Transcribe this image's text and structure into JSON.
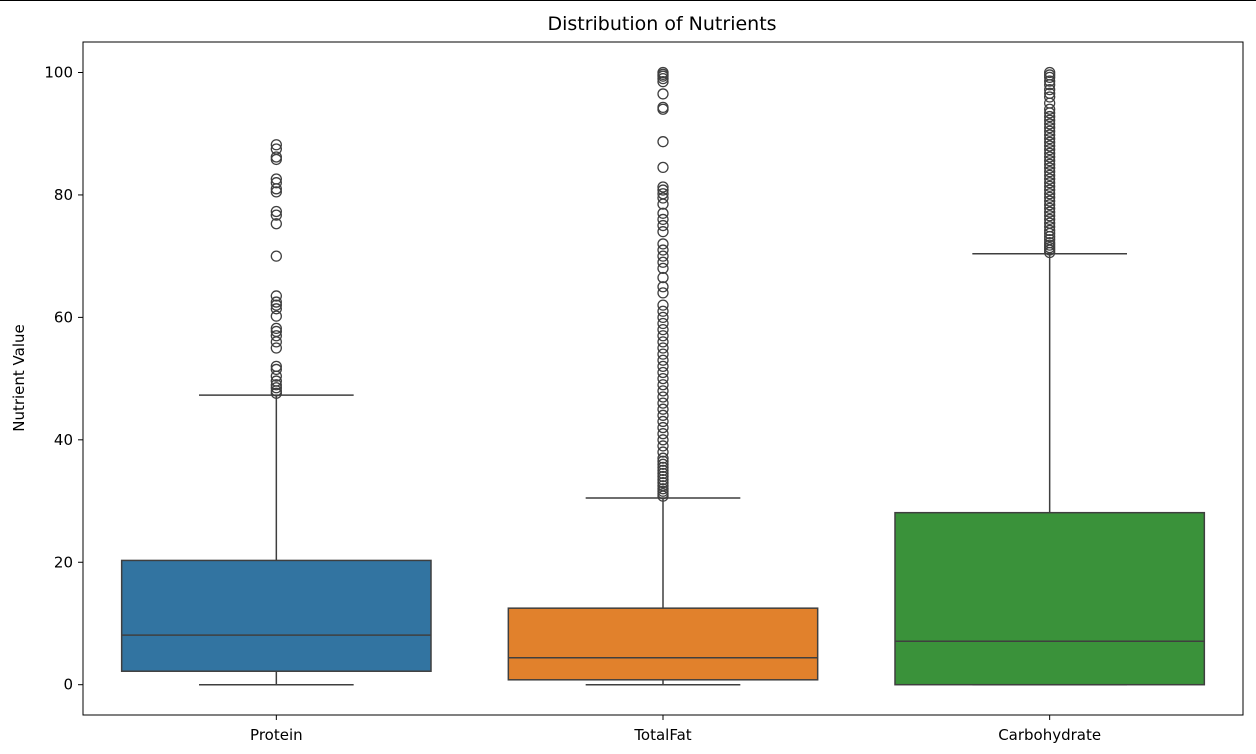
{
  "chart_data": {
    "type": "box",
    "title": "Distribution of Nutrients",
    "xlabel": "",
    "ylabel": "Nutrient Value",
    "ylim": [
      -5,
      105
    ],
    "yticks": [
      0,
      20,
      40,
      60,
      80,
      100
    ],
    "grid": false,
    "categories": [
      "Protein",
      "TotalFat",
      "Carbohydrate"
    ],
    "boxes": [
      {
        "name": "Protein",
        "color": "#3274a1",
        "whisker_low": 0,
        "q1": 2.2,
        "median": 8.1,
        "q3": 20.3,
        "whisker_high": 47.3,
        "outliers": [
          47.6,
          48.0,
          48.5,
          49.0,
          49.6,
          50.4,
          51.5,
          52.0,
          55.0,
          56.0,
          57.0,
          57.7,
          58.2,
          60.2,
          61.4,
          62.0,
          62.5,
          63.5,
          70.0,
          75.3,
          76.7,
          77.3,
          80.5,
          81.0,
          82.0,
          82.6,
          85.8,
          86.2,
          87.5,
          88.2
        ]
      },
      {
        "name": "TotalFat",
        "color": "#e1812c",
        "whisker_low": 0,
        "q1": 0.8,
        "median": 4.4,
        "q3": 12.5,
        "whisker_high": 30.5,
        "outliers": [
          30.8,
          31.2,
          31.6,
          32.0,
          32.5,
          33.0,
          33.5,
          34.0,
          34.5,
          35.0,
          35.5,
          36.0,
          36.5,
          37.0,
          38.0,
          39.0,
          40.0,
          41.0,
          42.0,
          43.0,
          44.0,
          45.0,
          46.0,
          47.0,
          48.0,
          49.0,
          50.0,
          51.0,
          52.0,
          53.0,
          54.0,
          55.0,
          56.0,
          57.0,
          58.0,
          59.0,
          60.0,
          61.0,
          62.0,
          64.0,
          65.0,
          66.5,
          68.0,
          69.0,
          70.0,
          71.0,
          72.0,
          74.0,
          75.0,
          76.0,
          77.0,
          78.5,
          79.5,
          80.2,
          80.8,
          81.3,
          84.5,
          88.7,
          94.0,
          94.3,
          96.5,
          98.5,
          99.0,
          99.4,
          99.7,
          100.0
        ]
      },
      {
        "name": "Carbohydrate",
        "color": "#3a923a",
        "whisker_low": 0,
        "q1": 0,
        "median": 7.1,
        "q3": 28.1,
        "whisker_high": 70.4,
        "outliers": [
          70.6,
          71.0,
          71.4,
          71.8,
          72.2,
          72.7,
          73.2,
          73.7,
          74.2,
          74.8,
          75.4,
          76.0,
          76.6,
          77.2,
          77.8,
          78.4,
          79.0,
          79.6,
          80.2,
          80.8,
          81.4,
          82.0,
          82.6,
          83.2,
          83.8,
          84.4,
          85.0,
          85.6,
          86.2,
          86.8,
          87.4,
          88.0,
          88.6,
          89.2,
          89.8,
          90.4,
          91.0,
          91.6,
          92.2,
          92.8,
          93.4,
          94.0,
          95.0,
          96.0,
          96.6,
          97.2,
          98.0,
          98.6,
          99.2,
          99.6,
          100.0
        ]
      }
    ]
  }
}
